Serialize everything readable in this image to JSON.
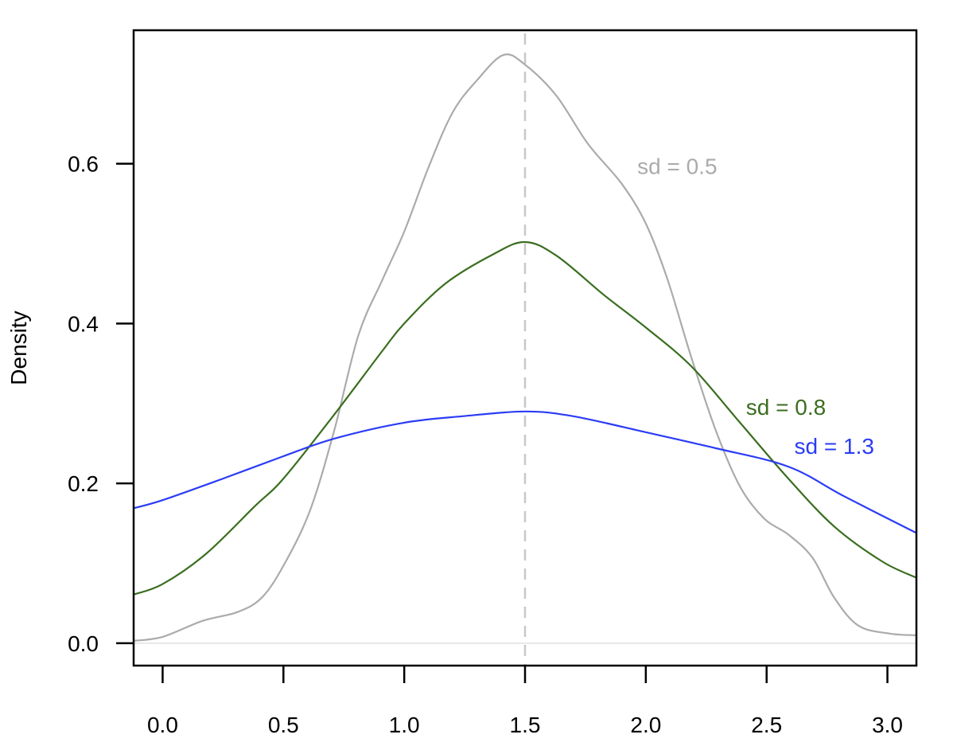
{
  "chart_data": {
    "type": "line",
    "title": "",
    "xlabel": "",
    "ylabel": "Density",
    "xlim": [
      -0.12,
      3.12
    ],
    "ylim": [
      -0.028,
      0.767
    ],
    "grid": false,
    "legend": "none (inline text annotations)",
    "x_ticks": [
      "0.0",
      "0.5",
      "1.0",
      "1.5",
      "2.0",
      "2.5",
      "3.0"
    ],
    "x_tick_values": [
      0.0,
      0.5,
      1.0,
      1.5,
      2.0,
      2.5,
      3.0
    ],
    "y_ticks": [
      "0.0",
      "0.2",
      "0.4",
      "0.6"
    ],
    "y_tick_values": [
      0.0,
      0.2,
      0.4,
      0.6
    ],
    "reference_lines": [
      {
        "type": "vertical",
        "x": 1.5,
        "style": "dashed",
        "color": "#c8c8c8"
      },
      {
        "type": "horizontal",
        "y": 0.0,
        "style": "solid",
        "color": "#e0e0e0"
      }
    ],
    "series": [
      {
        "name": "sd = 0.5",
        "color": "#ababab",
        "x": [
          -0.12,
          0.0,
          0.165,
          0.31,
          0.41,
          0.5,
          0.61,
          0.71,
          0.81,
          0.91,
          1.0,
          1.1,
          1.2,
          1.3,
          1.41,
          1.5,
          1.63,
          1.76,
          1.9,
          2.0,
          2.09,
          2.19,
          2.29,
          2.39,
          2.49,
          2.59,
          2.69,
          2.78,
          2.88,
          3.01,
          3.12
        ],
        "y": [
          0.003,
          0.008,
          0.028,
          0.039,
          0.057,
          0.097,
          0.166,
          0.266,
          0.385,
          0.455,
          0.515,
          0.595,
          0.664,
          0.704,
          0.736,
          0.724,
          0.685,
          0.625,
          0.575,
          0.525,
          0.455,
          0.356,
          0.266,
          0.196,
          0.156,
          0.136,
          0.107,
          0.057,
          0.022,
          0.012,
          0.01
        ]
      },
      {
        "name": "sd = 0.8",
        "color": "#3a6e1f",
        "x": [
          -0.12,
          0.0,
          0.18,
          0.38,
          0.5,
          0.71,
          0.91,
          1.0,
          1.17,
          1.37,
          1.5,
          1.63,
          1.83,
          2.0,
          2.19,
          2.39,
          2.59,
          2.78,
          2.98,
          3.12
        ],
        "y": [
          0.061,
          0.074,
          0.112,
          0.171,
          0.206,
          0.286,
          0.366,
          0.4,
          0.45,
          0.487,
          0.502,
          0.485,
          0.435,
          0.395,
          0.346,
          0.276,
          0.206,
          0.146,
          0.102,
          0.082
        ]
      },
      {
        "name": "sd = 1.3",
        "color": "#2b3cf5",
        "x": [
          -0.12,
          0.0,
          0.25,
          0.5,
          0.71,
          1.0,
          1.24,
          1.5,
          1.7,
          2.0,
          2.29,
          2.59,
          2.82,
          3.12
        ],
        "y": [
          0.169,
          0.179,
          0.206,
          0.234,
          0.256,
          0.276,
          0.284,
          0.29,
          0.284,
          0.264,
          0.244,
          0.221,
          0.184,
          0.138
        ]
      }
    ],
    "annotations": [
      {
        "text": "sd = 0.5",
        "x": 2.13,
        "y": 0.597,
        "color": "#ababab"
      },
      {
        "text": "sd = 0.8",
        "x": 2.58,
        "y": 0.296,
        "color": "#3a6e1f"
      },
      {
        "text": "sd = 1.3",
        "x": 2.78,
        "y": 0.247,
        "color": "#2b3cf5"
      }
    ]
  }
}
